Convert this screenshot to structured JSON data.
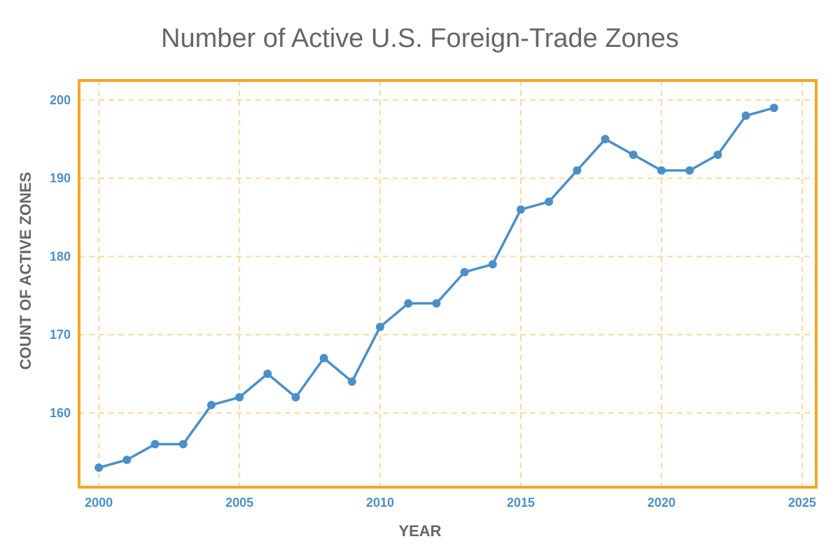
{
  "chart_data": {
    "type": "line",
    "title": "Number of Active U.S. Foreign-Trade Zones",
    "xlabel": "YEAR",
    "ylabel": "COUNT OF ACTIVE ZONES",
    "x": [
      2000,
      2001,
      2002,
      2003,
      2004,
      2005,
      2006,
      2007,
      2008,
      2009,
      2010,
      2011,
      2012,
      2013,
      2014,
      2015,
      2016,
      2017,
      2018,
      2019,
      2020,
      2021,
      2022,
      2023,
      2024
    ],
    "series": [
      {
        "name": "",
        "values": [
          153,
          154,
          156,
          156,
          161,
          162,
          165,
          162,
          167,
          164,
          171,
          174,
          174,
          178,
          179,
          186,
          187,
          191,
          195,
          193,
          191,
          191,
          193,
          198,
          199
        ]
      }
    ],
    "xlim": [
      1999.3,
      2025.5
    ],
    "ylim": [
      150.5,
      202.5
    ],
    "xticks": [
      "2000",
      "2005",
      "2010",
      "2015",
      "2020",
      "2025"
    ],
    "yticks": [
      "160",
      "170",
      "180",
      "190",
      "200"
    ],
    "grid": true,
    "colors": {
      "line": "#4a90c8",
      "frame": "#f5a623",
      "grid": "#fbd9a0",
      "ticks": "#4a90c8",
      "text": "#666666"
    }
  }
}
